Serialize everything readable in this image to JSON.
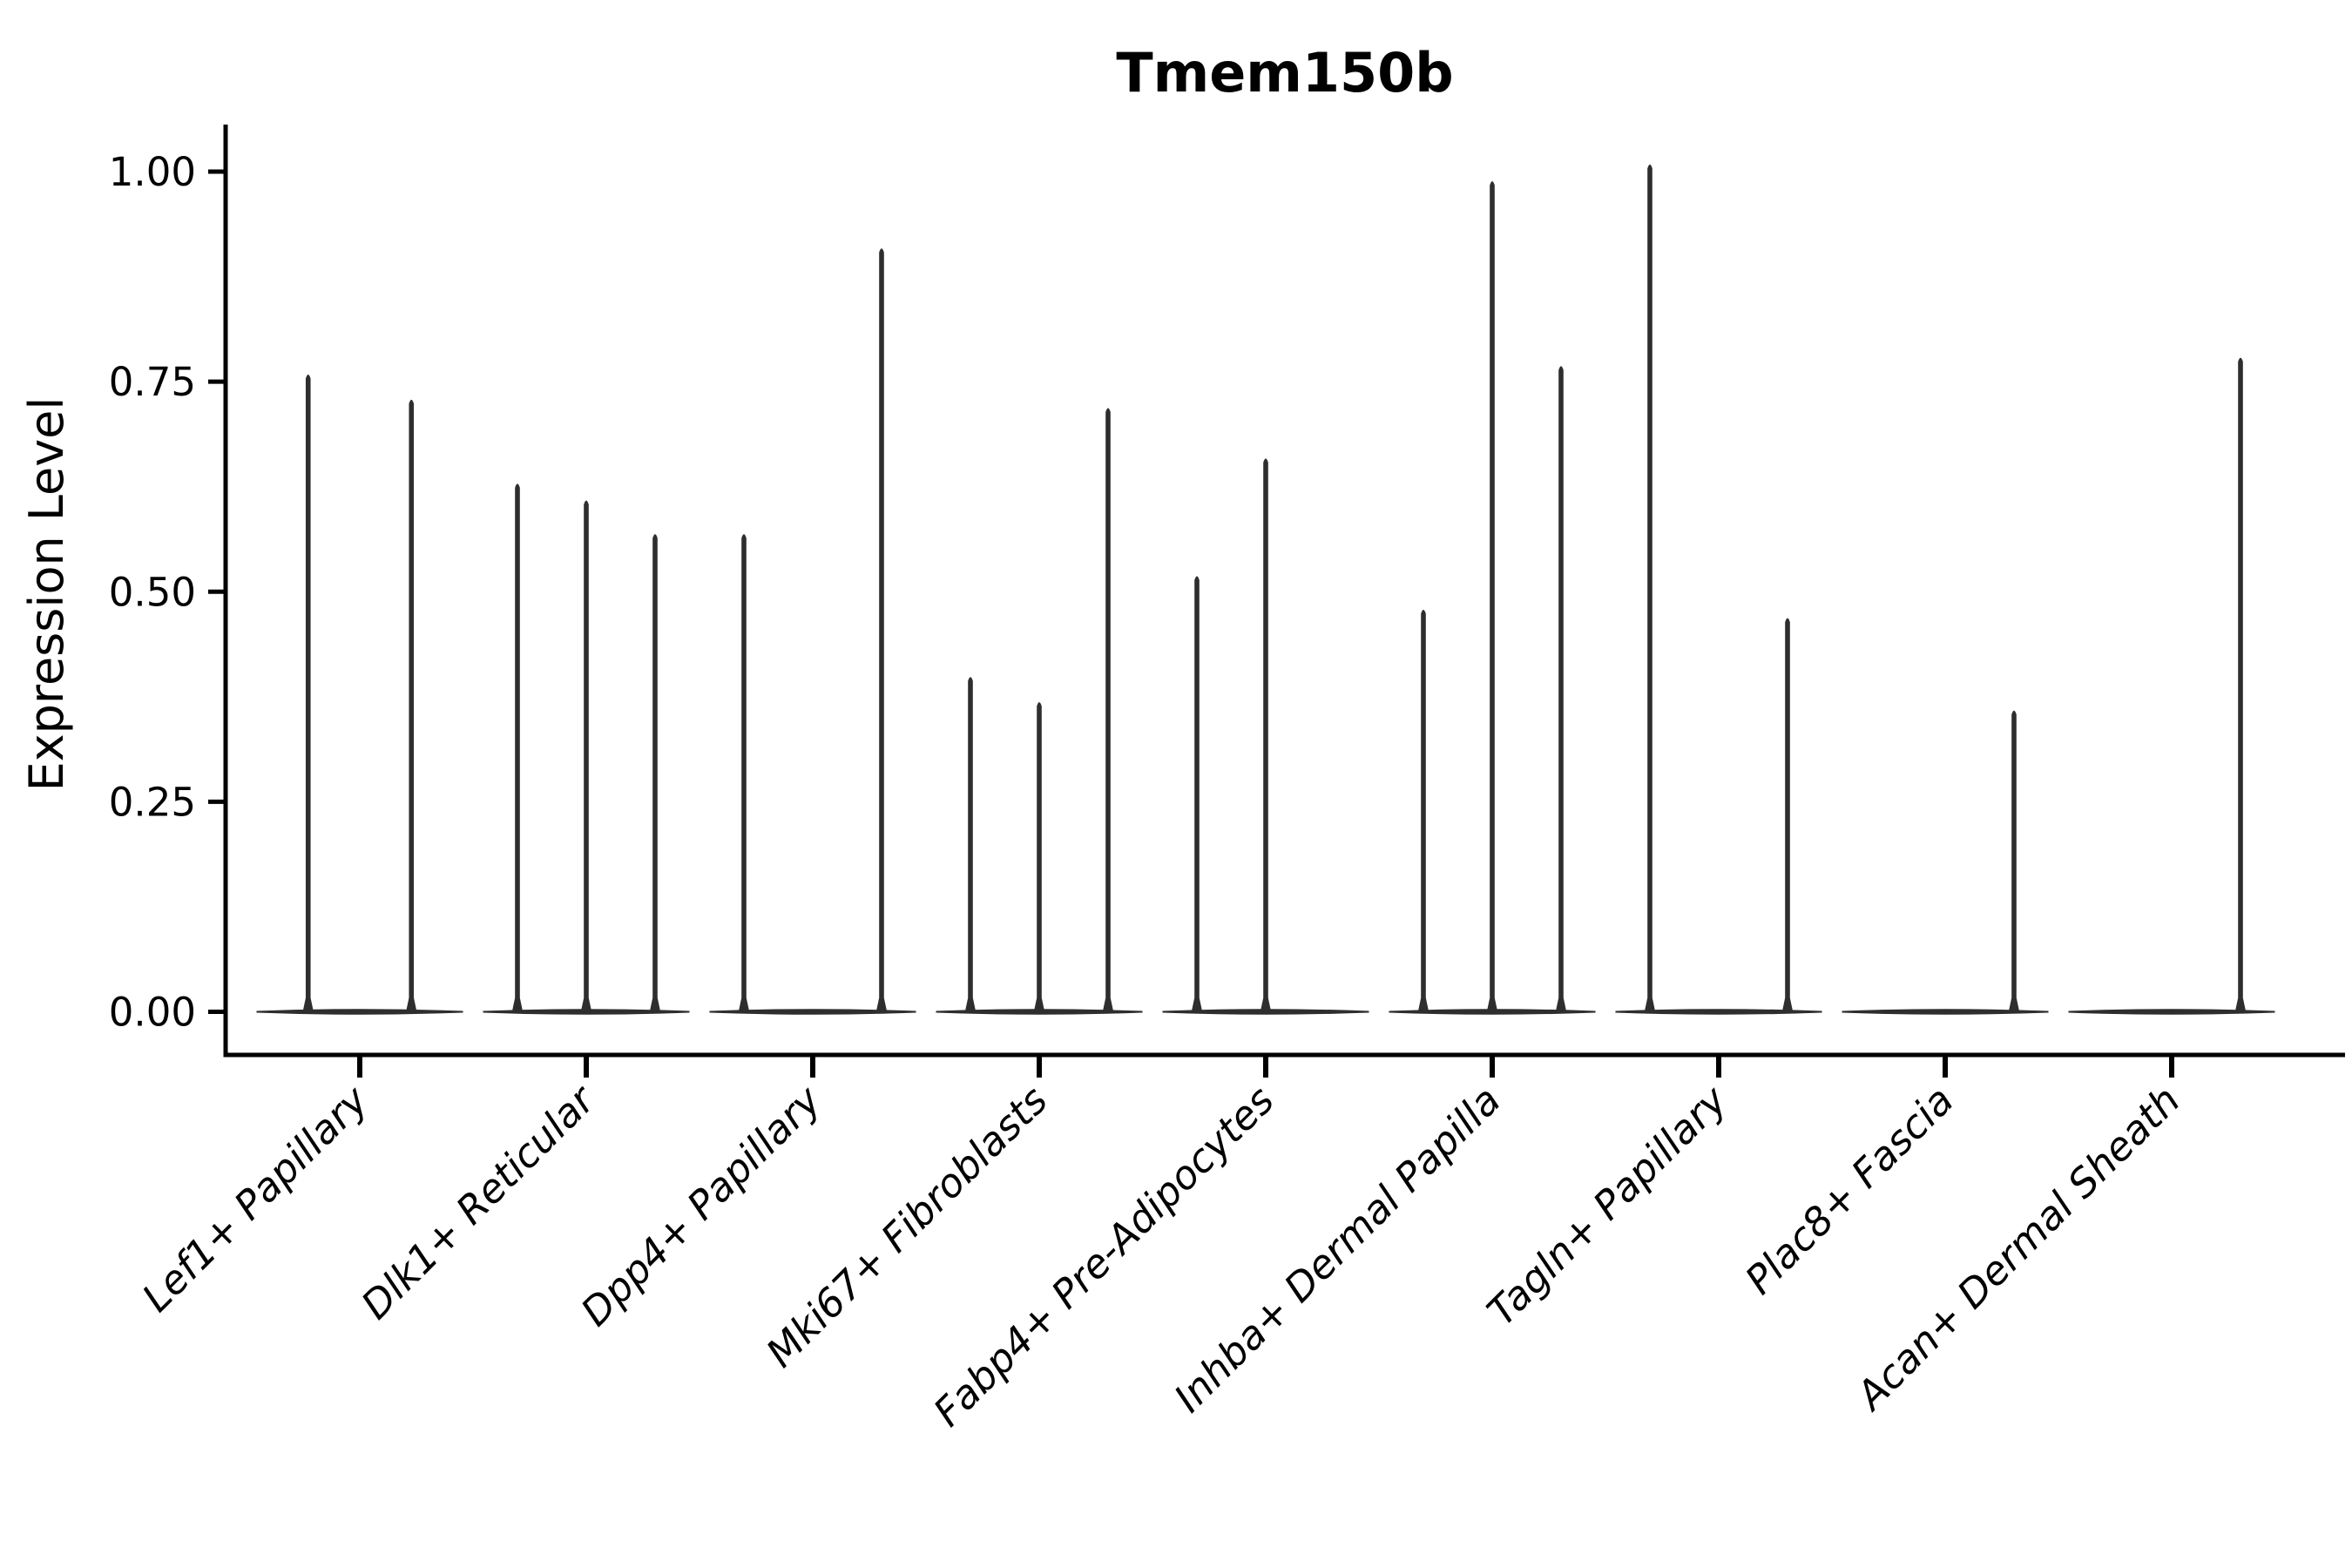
{
  "figure": {
    "background_color": "#ffffff",
    "ink_color": "#2e2e2e",
    "text_color": "#000000"
  },
  "chart_data": {
    "type": "violin",
    "title": "Tmem150b",
    "ylabel": "Expression Level",
    "xlabel": "",
    "ylim": [
      0,
      1.06
    ],
    "grid": false,
    "legend": false,
    "yticks": [
      {
        "label": "0.00",
        "value": 0.0
      },
      {
        "label": "0.25",
        "value": 0.25
      },
      {
        "label": "0.50",
        "value": 0.5
      },
      {
        "label": "0.75",
        "value": 0.75
      },
      {
        "label": "1.00",
        "value": 1.0
      }
    ],
    "categories": [
      "Lef1+ Papillary",
      "Dlk1+ Reticular",
      "Dpp4+ Papillary",
      "Mki67+ Fibroblasts",
      "Fabp4+ Pre-Adipocytes",
      "Inhba+ Dermal Papilla",
      "Tagln+ Papillary",
      "Plac8+ Fascia",
      "Acan+ Dermal Sheath"
    ],
    "groups": [
      {
        "label": "Lef1+ Papillary",
        "violins": 2,
        "spikes": [
          {
            "violin": 1,
            "peak": 0.76
          },
          {
            "violin": 2,
            "peak": 0.73
          }
        ]
      },
      {
        "label": "Dlk1+ Reticular",
        "violins": 3,
        "spikes": [
          {
            "violin": 1,
            "peak": 0.63
          },
          {
            "violin": 2,
            "peak": 0.61
          },
          {
            "violin": 3,
            "peak": 0.57
          }
        ]
      },
      {
        "label": "Dpp4+ Papillary",
        "violins": 3,
        "spikes": [
          {
            "violin": 1,
            "peak": 0.57
          },
          {
            "violin": 3,
            "peak": 0.91
          }
        ]
      },
      {
        "label": "Mki67+ Fibroblasts",
        "violins": 3,
        "spikes": [
          {
            "violin": 1,
            "peak": 0.4
          },
          {
            "violin": 2,
            "peak": 0.37
          },
          {
            "violin": 3,
            "peak": 0.72
          }
        ]
      },
      {
        "label": "Fabp4+ Pre-Adipocytes",
        "violins": 3,
        "spikes": [
          {
            "violin": 1,
            "peak": 0.52
          },
          {
            "violin": 2,
            "peak": 0.66
          }
        ]
      },
      {
        "label": "Inhba+ Dermal Papilla",
        "violins": 3,
        "spikes": [
          {
            "violin": 1,
            "peak": 0.48
          },
          {
            "violin": 2,
            "peak": 0.99
          },
          {
            "violin": 3,
            "peak": 0.77
          }
        ]
      },
      {
        "label": "Tagln+ Papillary",
        "violins": 3,
        "spikes": [
          {
            "violin": 1,
            "peak": 1.01
          },
          {
            "violin": 3,
            "peak": 0.47
          }
        ]
      },
      {
        "label": "Plac8+ Fascia",
        "violins": 3,
        "spikes": [
          {
            "violin": 3,
            "peak": 0.36
          }
        ]
      },
      {
        "label": "Acan+ Dermal Sheath",
        "violins": 3,
        "spikes": [
          {
            "violin": 3,
            "peak": 0.78
          }
        ]
      }
    ]
  }
}
